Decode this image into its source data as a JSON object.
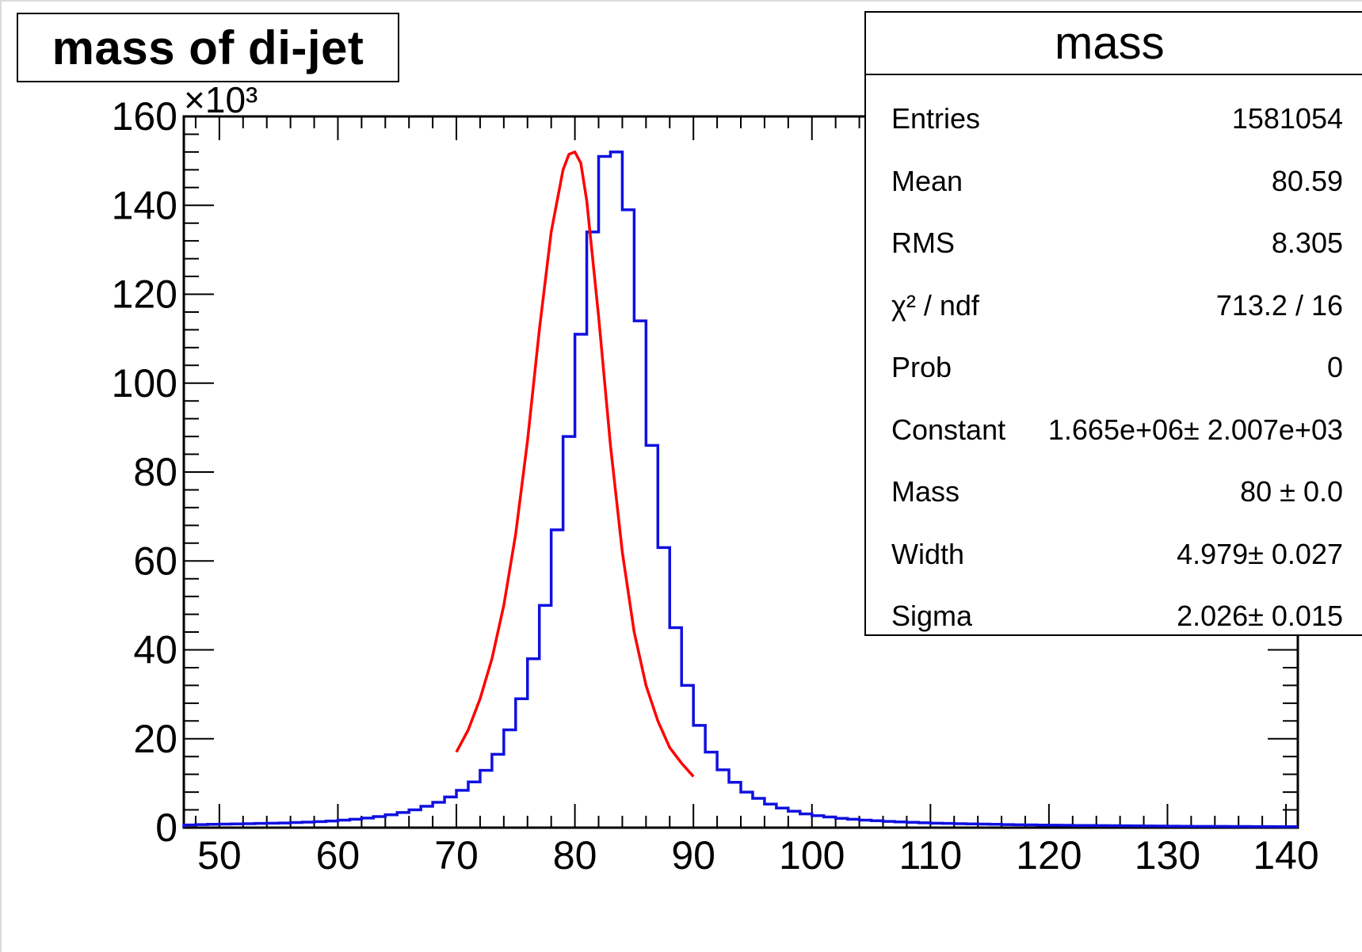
{
  "chart_data": {
    "type": "bar",
    "title": "mass of di-jet",
    "xlabel": "",
    "ylabel": "",
    "xlim": [
      47,
      141
    ],
    "ylim": [
      0,
      160000
    ],
    "y_multiplier_label": "×10³",
    "xticks": [
      50,
      60,
      70,
      80,
      90,
      100,
      110,
      120,
      130,
      140
    ],
    "xtick_labels": [
      "50",
      "60",
      "70",
      "80",
      "90",
      "100",
      "110",
      "120",
      "130",
      "140"
    ],
    "yticks": [
      0,
      20000,
      40000,
      60000,
      80000,
      100000,
      120000,
      140000,
      160000
    ],
    "ytick_labels": [
      "0",
      "20",
      "40",
      "60",
      "80",
      "100",
      "120",
      "140",
      "160"
    ],
    "bin_width": 1,
    "bin_edges_start": 47,
    "series": [
      {
        "style": "histogram",
        "color": "#1010e0",
        "values": [
          600,
          700,
          750,
          800,
          850,
          900,
          950,
          1000,
          1050,
          1150,
          1250,
          1350,
          1500,
          1700,
          1900,
          2150,
          2500,
          2900,
          3400,
          4000,
          4800,
          5700,
          6900,
          8400,
          10300,
          12900,
          16500,
          22000,
          29000,
          38000,
          50000,
          67000,
          88000,
          111000,
          134000,
          151000,
          152000,
          139000,
          114000,
          86000,
          63000,
          45000,
          32000,
          23000,
          17000,
          13000,
          10200,
          8000,
          6600,
          5300,
          4400,
          3700,
          3100,
          2700,
          2400,
          2100,
          1900,
          1700,
          1550,
          1400,
          1300,
          1200,
          1100,
          1000,
          950,
          900,
          850,
          800,
          750,
          700,
          650,
          620,
          590,
          560,
          530,
          500,
          480,
          460,
          440,
          420,
          400,
          380,
          360,
          340,
          320,
          300,
          290,
          280,
          270,
          260,
          250,
          240,
          230,
          220
        ]
      },
      {
        "style": "line",
        "color": "#ff0000",
        "fit": "Voigt",
        "x": [
          70,
          71,
          72,
          73,
          74,
          75,
          76,
          77,
          78,
          79,
          79.5,
          80,
          80.5,
          81,
          82,
          83,
          84,
          85,
          86,
          87,
          88,
          89,
          90
        ],
        "y": [
          17000,
          22000,
          29000,
          38000,
          50000,
          66000,
          87000,
          112000,
          134000,
          148000,
          151500,
          152000,
          149500,
          141000,
          115000,
          86000,
          62000,
          44000,
          32000,
          24000,
          18000,
          14500,
          11500
        ]
      }
    ]
  },
  "stats": {
    "title": "mass",
    "rows": [
      {
        "label": "Entries",
        "value": "1581054"
      },
      {
        "label": "Mean",
        "value": "80.59"
      },
      {
        "label": "RMS",
        "value": "8.305"
      },
      {
        "label": "χ² / ndf",
        "value": "713.2 / 16"
      },
      {
        "label": "Prob",
        "value": "0"
      },
      {
        "label": "Constant",
        "value": "1.665e+06± 2.007e+03"
      },
      {
        "label": "Mass",
        "value": "80 ± 0.0"
      },
      {
        "label": "Width",
        "value": "4.979± 0.027"
      },
      {
        "label": "Sigma",
        "value": "2.026± 0.015"
      }
    ]
  }
}
